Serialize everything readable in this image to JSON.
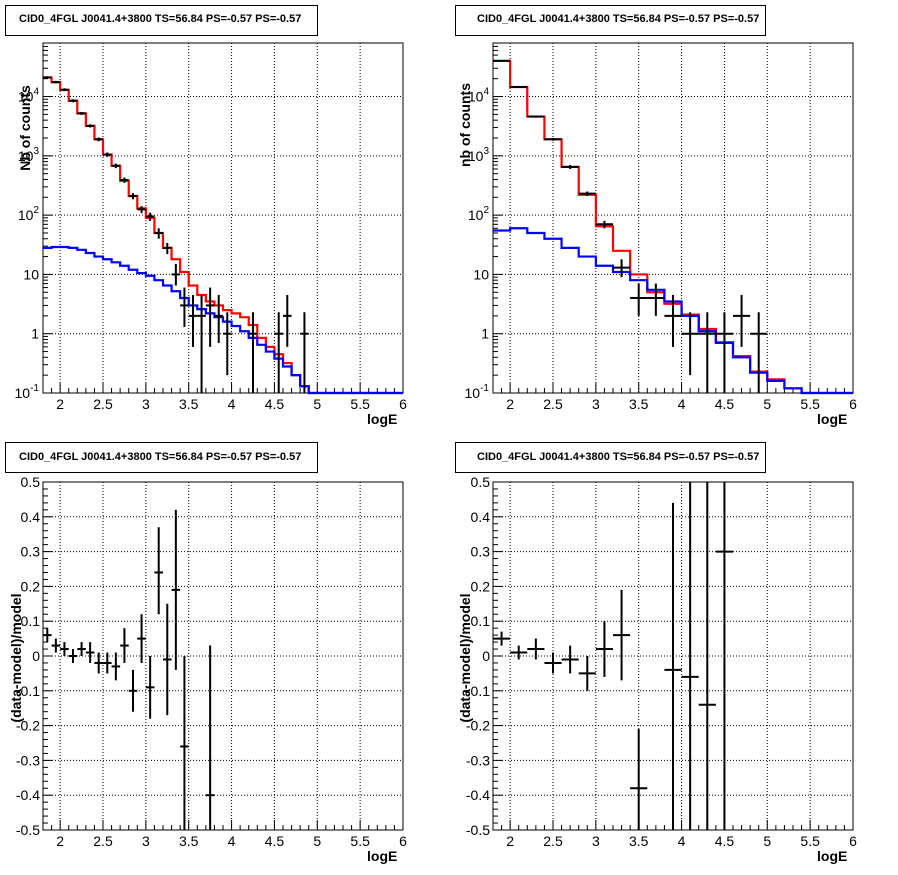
{
  "chart_data": [
    {
      "id": "top-left",
      "type": "histogram",
      "title": "CID0_4FGL J0041.4+3800 TS=56.84 PS=-0.57 PS=-0.57",
      "xlabel": "logE",
      "ylabel": "Nb of counts",
      "xlim": [
        1.8,
        6.0
      ],
      "ylim": [
        0.1,
        80000
      ],
      "yscale": "log",
      "x_ticks": [
        "2",
        "2.5",
        "3",
        "3.5",
        "4",
        "4.5",
        "5",
        "5.5",
        "6"
      ],
      "y_ticks": [
        "10^-1",
        "1",
        "10",
        "10^2",
        "10^3",
        "10^4"
      ],
      "grid": true,
      "bin_edges": [
        1.8,
        1.9,
        2.0,
        2.1,
        2.2,
        2.3,
        2.4,
        2.5,
        2.6,
        2.7,
        2.8,
        2.9,
        3.0,
        3.1,
        3.2,
        3.3,
        3.4,
        3.5,
        3.6,
        3.7,
        3.8,
        3.9,
        4.0,
        4.1,
        4.2,
        4.3,
        4.4,
        4.5,
        4.6,
        4.7,
        4.8,
        4.9,
        5.0,
        5.1,
        5.2,
        5.3,
        5.4,
        5.5,
        5.6,
        5.7,
        5.8,
        5.9,
        6.0
      ],
      "series": [
        {
          "color": "#ff0000",
          "values": [
            21000,
            17500,
            13000,
            8500,
            5200,
            3200,
            1900,
            1050,
            680,
            380,
            210,
            130,
            90,
            50,
            28,
            18,
            11,
            6.5,
            4.5,
            3.5,
            3.0,
            2.5,
            2.2,
            1.9,
            1.4,
            0.85,
            0.6,
            0.45,
            0.32,
            0.2,
            0.13,
            0.1,
            0.1,
            0.1,
            0.1,
            0.1,
            0.1,
            0.1,
            0.1,
            0.1,
            0.1,
            0.1
          ]
        },
        {
          "color": "#0000ff",
          "values": [
            28,
            29,
            29,
            28,
            26,
            23,
            20,
            18,
            16,
            14,
            12,
            10.5,
            9.5,
            8,
            6.5,
            5.2,
            4,
            3,
            2.6,
            2.2,
            1.9,
            1.6,
            1.35,
            1.1,
            0.85,
            0.65,
            0.5,
            0.38,
            0.28,
            0.2,
            0.13,
            0.1,
            0.1,
            0.1,
            0.1,
            0.1,
            0.1,
            0.1,
            0.1,
            0.1,
            0.1,
            0.1
          ]
        }
      ],
      "points": [
        {
          "x": 1.85,
          "y": 21000,
          "lo": 20000,
          "hi": 22000
        },
        {
          "x": 1.95,
          "y": 17500,
          "lo": 16600,
          "hi": 18400
        },
        {
          "x": 2.05,
          "y": 13000,
          "lo": 12300,
          "hi": 13800
        },
        {
          "x": 2.15,
          "y": 8500,
          "lo": 8000,
          "hi": 9000
        },
        {
          "x": 2.25,
          "y": 5200,
          "lo": 4900,
          "hi": 5500
        },
        {
          "x": 2.35,
          "y": 3200,
          "lo": 3000,
          "hi": 3400
        },
        {
          "x": 2.45,
          "y": 1900,
          "lo": 1760,
          "hi": 2040
        },
        {
          "x": 2.55,
          "y": 1050,
          "lo": 960,
          "hi": 1140
        },
        {
          "x": 2.65,
          "y": 680,
          "lo": 620,
          "hi": 740
        },
        {
          "x": 2.75,
          "y": 390,
          "lo": 350,
          "hi": 430
        },
        {
          "x": 2.85,
          "y": 210,
          "lo": 185,
          "hi": 235
        },
        {
          "x": 2.95,
          "y": 125,
          "lo": 108,
          "hi": 142
        },
        {
          "x": 3.05,
          "y": 95,
          "lo": 80,
          "hi": 110
        },
        {
          "x": 3.15,
          "y": 50,
          "lo": 40,
          "hi": 60
        },
        {
          "x": 3.25,
          "y": 28,
          "lo": 22,
          "hi": 34
        },
        {
          "x": 3.35,
          "y": 10,
          "lo": 6.5,
          "hi": 15
        },
        {
          "x": 3.45,
          "y": 3,
          "lo": 1.3,
          "hi": 6
        },
        {
          "x": 3.55,
          "y": 2,
          "lo": 0.6,
          "hi": 4.5
        },
        {
          "x": 3.65,
          "y": 2,
          "lo": 0.1,
          "hi": 4.5
        },
        {
          "x": 3.75,
          "y": 3,
          "lo": 0.6,
          "hi": 6
        },
        {
          "x": 3.85,
          "y": 2,
          "lo": 0.7,
          "hi": 4.5
        },
        {
          "x": 3.95,
          "y": 1,
          "lo": 0.2,
          "hi": 2.3
        },
        {
          "x": 4.25,
          "y": 1,
          "lo": 0.1,
          "hi": 2.3
        },
        {
          "x": 4.55,
          "y": 1,
          "lo": 0.1,
          "hi": 2.3
        },
        {
          "x": 4.65,
          "y": 2,
          "lo": 0.6,
          "hi": 4.5
        },
        {
          "x": 4.85,
          "y": 1,
          "lo": 0.1,
          "hi": 2.3
        }
      ]
    },
    {
      "id": "top-right",
      "type": "histogram",
      "title": "CID0_4FGL J0041.4+3800 TS=56.84 PS=-0.57 PS=-0.57",
      "xlabel": "logE",
      "ylabel": "nb of counts",
      "xlim": [
        1.8,
        6.0
      ],
      "ylim": [
        0.1,
        80000
      ],
      "yscale": "log",
      "x_ticks": [
        "2",
        "2.5",
        "3",
        "3.5",
        "4",
        "4.5",
        "5",
        "5.5",
        "6"
      ],
      "y_ticks": [
        "10^-1",
        "1",
        "10",
        "10^2",
        "10^3",
        "10^4"
      ],
      "grid": true,
      "bin_edges": [
        1.8,
        2.0,
        2.2,
        2.4,
        2.6,
        2.8,
        3.0,
        3.2,
        3.4,
        3.6,
        3.8,
        4.0,
        4.2,
        4.4,
        4.6,
        4.8,
        5.0,
        5.2,
        5.4,
        5.6,
        5.8,
        6.0
      ],
      "series": [
        {
          "color": "#ff0000",
          "values": [
            40000,
            14500,
            4600,
            1900,
            650,
            220,
            65,
            25,
            10,
            5,
            3.2,
            2.1,
            1.2,
            0.72,
            0.42,
            0.23,
            0.17,
            0.12,
            0.1,
            0.1,
            0.1
          ]
        },
        {
          "color": "#0000ff",
          "values": [
            55,
            60,
            50,
            40,
            28,
            20,
            14,
            11,
            8,
            5.5,
            3.5,
            2,
            1.1,
            0.7,
            0.4,
            0.22,
            0.16,
            0.12,
            0.1,
            0.1,
            0.1
          ]
        }
      ],
      "points": [
        {
          "x": 1.9,
          "y": 40000,
          "lo": 39000,
          "hi": 41000
        },
        {
          "x": 2.1,
          "y": 14500,
          "lo": 14000,
          "hi": 15000
        },
        {
          "x": 2.3,
          "y": 4600,
          "lo": 4400,
          "hi": 4800
        },
        {
          "x": 2.5,
          "y": 1900,
          "lo": 1800,
          "hi": 2000
        },
        {
          "x": 2.7,
          "y": 650,
          "lo": 600,
          "hi": 700
        },
        {
          "x": 2.9,
          "y": 230,
          "lo": 210,
          "hi": 250
        },
        {
          "x": 3.1,
          "y": 70,
          "lo": 60,
          "hi": 80
        },
        {
          "x": 3.3,
          "y": 13,
          "lo": 9,
          "hi": 18
        },
        {
          "x": 3.5,
          "y": 4,
          "lo": 2,
          "hi": 7
        },
        {
          "x": 3.7,
          "y": 4,
          "lo": 2,
          "hi": 7
        },
        {
          "x": 3.9,
          "y": 2,
          "lo": 0.6,
          "hi": 4.5
        },
        {
          "x": 4.1,
          "y": 1,
          "lo": 0.2,
          "hi": 2.3
        },
        {
          "x": 4.3,
          "y": 1,
          "lo": 0.1,
          "hi": 2.3
        },
        {
          "x": 4.5,
          "y": 1,
          "lo": 0.1,
          "hi": 2.3
        },
        {
          "x": 4.7,
          "y": 2,
          "lo": 0.6,
          "hi": 4.5
        },
        {
          "x": 4.9,
          "y": 1,
          "lo": 0.1,
          "hi": 2.3
        }
      ]
    },
    {
      "id": "bottom-left",
      "type": "scatter",
      "title": "CID0_4FGL J0041.4+3800 TS=56.84 PS=-0.57 PS=-0.57",
      "xlabel": "logE",
      "ylabel": "(data-model)/model",
      "xlim": [
        1.8,
        6.0
      ],
      "ylim": [
        -0.5,
        0.5
      ],
      "x_ticks": [
        "2",
        "2.5",
        "3",
        "3.5",
        "4",
        "4.5",
        "5",
        "5.5",
        "6"
      ],
      "y_ticks": [
        "-0.5",
        "-0.4",
        "-0.3",
        "-0.2",
        "-0.1",
        "0",
        "0.1",
        "0.2",
        "0.3",
        "0.4",
        "0.5"
      ],
      "grid": true,
      "xerr": 0.05,
      "points": [
        {
          "x": 1.85,
          "y": 0.06,
          "lo": 0.04,
          "hi": 0.08
        },
        {
          "x": 1.95,
          "y": 0.03,
          "lo": 0.01,
          "hi": 0.05
        },
        {
          "x": 2.05,
          "y": 0.02,
          "lo": 0.0,
          "hi": 0.04
        },
        {
          "x": 2.15,
          "y": 0.0,
          "lo": -0.02,
          "hi": 0.02
        },
        {
          "x": 2.25,
          "y": 0.02,
          "lo": 0.0,
          "hi": 0.04
        },
        {
          "x": 2.35,
          "y": 0.01,
          "lo": -0.02,
          "hi": 0.04
        },
        {
          "x": 2.45,
          "y": -0.02,
          "lo": -0.05,
          "hi": 0.01
        },
        {
          "x": 2.55,
          "y": -0.02,
          "lo": -0.05,
          "hi": 0.01
        },
        {
          "x": 2.65,
          "y": -0.03,
          "lo": -0.07,
          "hi": 0.01
        },
        {
          "x": 2.75,
          "y": 0.03,
          "lo": -0.02,
          "hi": 0.08
        },
        {
          "x": 2.85,
          "y": -0.1,
          "lo": -0.16,
          "hi": -0.04
        },
        {
          "x": 2.95,
          "y": 0.05,
          "lo": -0.02,
          "hi": 0.12
        },
        {
          "x": 3.05,
          "y": -0.09,
          "lo": -0.18,
          "hi": 0.0
        },
        {
          "x": 3.15,
          "y": 0.24,
          "lo": 0.12,
          "hi": 0.37
        },
        {
          "x": 3.25,
          "y": -0.01,
          "lo": -0.17,
          "hi": 0.15
        },
        {
          "x": 3.35,
          "y": 0.19,
          "lo": -0.04,
          "hi": 0.42
        },
        {
          "x": 3.45,
          "y": -0.26,
          "lo": -0.5,
          "hi": 0.0
        },
        {
          "x": 3.75,
          "y": -0.4,
          "lo": -0.5,
          "hi": 0.03
        }
      ]
    },
    {
      "id": "bottom-right",
      "type": "scatter",
      "title": "CID0_4FGL J0041.4+3800 TS=56.84 PS=-0.57 PS=-0.57",
      "xlabel": "logE",
      "ylabel": "(data-model)/model",
      "xlim": [
        1.8,
        6.0
      ],
      "ylim": [
        -0.5,
        0.5
      ],
      "x_ticks": [
        "2",
        "2.5",
        "3",
        "3.5",
        "4",
        "4.5",
        "5",
        "5.5",
        "6"
      ],
      "y_ticks": [
        "-0.5",
        "-0.4",
        "-0.3",
        "-0.2",
        "-0.1",
        "0",
        "0.1",
        "0.2",
        "0.3",
        "0.4",
        "0.5"
      ],
      "grid": true,
      "xerr": 0.1,
      "points": [
        {
          "x": 1.9,
          "y": 0.05,
          "lo": 0.03,
          "hi": 0.07
        },
        {
          "x": 2.1,
          "y": 0.01,
          "lo": -0.01,
          "hi": 0.03
        },
        {
          "x": 2.3,
          "y": 0.02,
          "lo": -0.01,
          "hi": 0.05
        },
        {
          "x": 2.5,
          "y": -0.02,
          "lo": -0.05,
          "hi": 0.01
        },
        {
          "x": 2.7,
          "y": -0.01,
          "lo": -0.05,
          "hi": 0.03
        },
        {
          "x": 2.9,
          "y": -0.05,
          "lo": -0.1,
          "hi": 0.0
        },
        {
          "x": 3.1,
          "y": 0.02,
          "lo": -0.06,
          "hi": 0.1
        },
        {
          "x": 3.3,
          "y": 0.06,
          "lo": -0.07,
          "hi": 0.19
        },
        {
          "x": 3.5,
          "y": -0.38,
          "lo": -0.5,
          "hi": -0.21
        },
        {
          "x": 3.9,
          "y": -0.04,
          "lo": -0.5,
          "hi": 0.44
        },
        {
          "x": 4.1,
          "y": -0.06,
          "lo": -0.5,
          "hi": 0.5
        },
        {
          "x": 4.3,
          "y": -0.14,
          "lo": -0.5,
          "hi": 0.5
        },
        {
          "x": 4.5,
          "y": 0.3,
          "lo": -0.5,
          "hi": 0.5
        }
      ]
    }
  ]
}
